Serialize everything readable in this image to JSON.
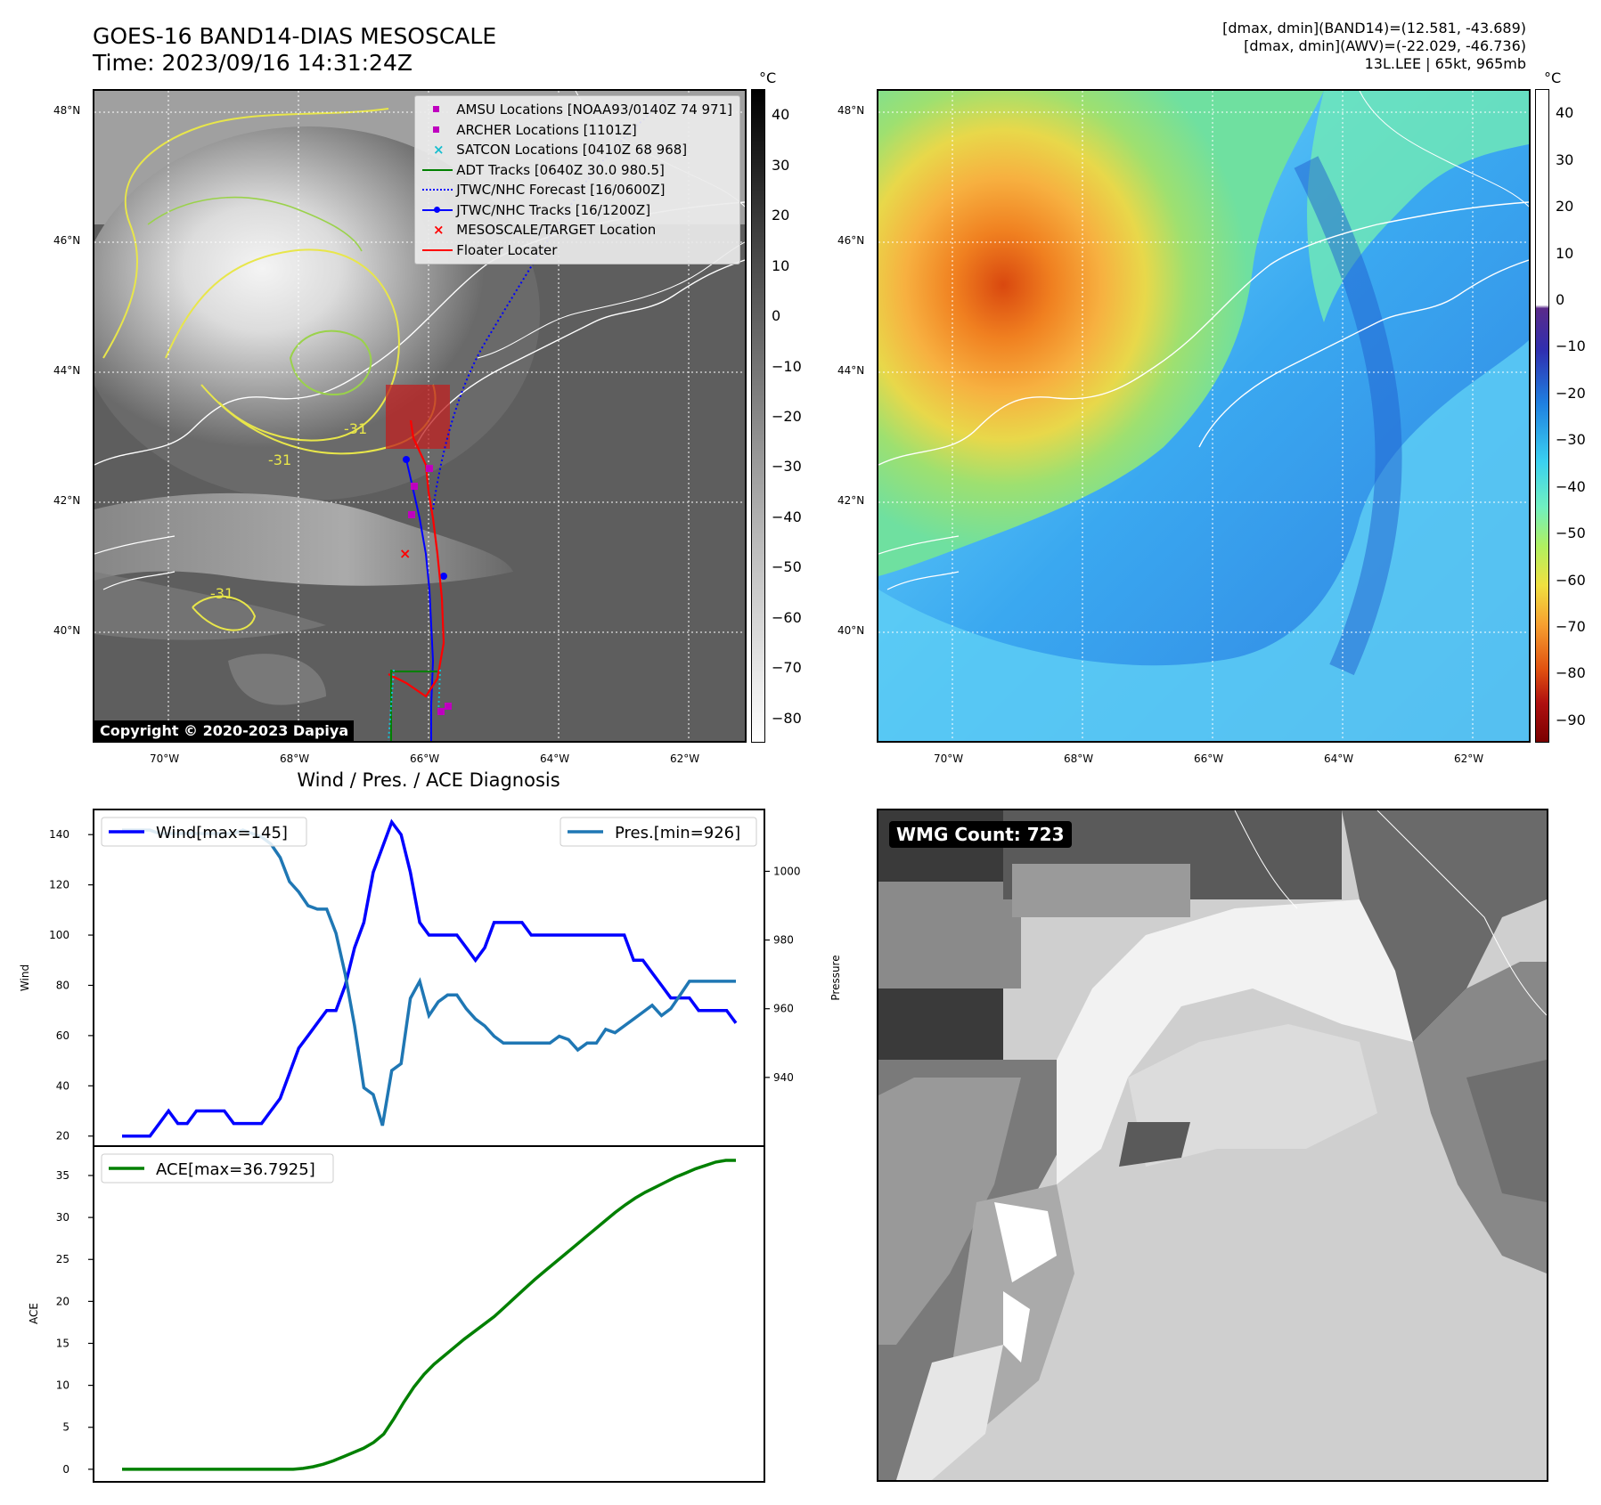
{
  "header": {
    "title_line1": "GOES-16 BAND14-DIAS MESOSCALE",
    "title_line2": "Time: 2023/09/16 14:31:24Z",
    "info_line1": "[dmax, dmin](BAND14)=(12.581, -43.689)",
    "info_line2": "[dmax, dmin](AWV)=(-22.029, -46.736)",
    "info_line3": "13L.LEE | 65kt, 965mb"
  },
  "map_left": {
    "lat_labels": [
      "48°N",
      "46°N",
      "44°N",
      "42°N",
      "40°N"
    ],
    "lon_labels": [
      "70°W",
      "68°W",
      "66°W",
      "64°W",
      "62°W"
    ],
    "contour_labels": [
      "-31",
      "-31",
      "-31"
    ],
    "copyright": "Copyright © 2020-2023 Dapiya",
    "legend": [
      {
        "label": "AMSU Locations [NOAA93/0140Z 74 971]",
        "symbol": "square",
        "color": "#bf00bf"
      },
      {
        "label": "ARCHER Locations [1101Z]",
        "symbol": "square",
        "color": "#bf00bf"
      },
      {
        "label": "SATCON Locations [0410Z 68 968]",
        "symbol": "x",
        "color": "#17becf"
      },
      {
        "label": "ADT Tracks [0640Z 30.0 980.5]",
        "symbol": "line",
        "color": "#008000"
      },
      {
        "label": "JTWC/NHC Forecast [16/0600Z]",
        "symbol": "dotted",
        "color": "#0000ff"
      },
      {
        "label": "JTWC/NHC Tracks [16/1200Z]",
        "symbol": "line-dot",
        "color": "#0000ff"
      },
      {
        "label": "MESOSCALE/TARGET Location",
        "symbol": "x",
        "color": "#ff0000"
      },
      {
        "label": "Floater Locater",
        "symbol": "line",
        "color": "#ff0000"
      }
    ],
    "colorbar": {
      "unit": "°C",
      "ticks": [
        "40",
        "30",
        "20",
        "10",
        "0",
        "−10",
        "−20",
        "−30",
        "−40",
        "−50",
        "−60",
        "−70",
        "−80"
      ]
    }
  },
  "map_right": {
    "lat_labels": [
      "48°N",
      "46°N",
      "44°N",
      "42°N",
      "40°N"
    ],
    "lon_labels": [
      "70°W",
      "68°W",
      "66°W",
      "64°W",
      "62°W"
    ],
    "colorbar": {
      "unit": "°C",
      "ticks": [
        "40",
        "30",
        "20",
        "10",
        "0",
        "−10",
        "−20",
        "−30",
        "−40",
        "−50",
        "−60",
        "−70",
        "−80",
        "−90"
      ]
    }
  },
  "wmg": {
    "label": "WMG Count: 723"
  },
  "chart_data": [
    {
      "type": "line",
      "title": "Wind / Pres. / ACE Diagnosis",
      "ylabel": "Wind",
      "y2label": "Pressure",
      "ylim": [
        16,
        150
      ],
      "y2lim": [
        920,
        1018
      ],
      "yticks": [
        20,
        40,
        60,
        80,
        100,
        120,
        140
      ],
      "y2ticks": [
        940,
        960,
        980,
        1000
      ],
      "series": [
        {
          "name": "Wind[max=145]",
          "color": "#0000ff",
          "axis": "left",
          "values": [
            20,
            20,
            20,
            20,
            25,
            30,
            25,
            25,
            30,
            30,
            30,
            30,
            25,
            25,
            25,
            25,
            30,
            35,
            45,
            55,
            60,
            65,
            70,
            70,
            80,
            95,
            105,
            125,
            135,
            145,
            140,
            125,
            105,
            100,
            100,
            100,
            100,
            95,
            90,
            95,
            105,
            105,
            105,
            105,
            100,
            100,
            100,
            100,
            100,
            100,
            100,
            100,
            100,
            100,
            100,
            90,
            90,
            85,
            80,
            75,
            75,
            75,
            70,
            70,
            70,
            70,
            65
          ]
        },
        {
          "name": "Pres.[min=926]",
          "color": "#1f77b4",
          "axis": "right",
          "values": [
            1012,
            1012,
            1012,
            1012,
            1011,
            1011,
            1011,
            1011,
            1011,
            1011,
            1011,
            1011,
            1011,
            1012,
            1011,
            1010,
            1008,
            1004,
            997,
            994,
            990,
            989,
            989,
            982,
            970,
            955,
            937,
            935,
            926,
            942,
            944,
            963,
            968,
            958,
            962,
            964,
            964,
            960,
            957,
            955,
            952,
            950,
            950,
            950,
            950,
            950,
            950,
            952,
            951,
            948,
            950,
            950,
            954,
            953,
            955,
            957,
            959,
            961,
            958,
            960,
            964,
            968,
            968,
            968,
            968,
            968,
            968
          ]
        }
      ]
    },
    {
      "type": "line",
      "ylabel": "ACE",
      "ylim": [
        -1.5,
        38.5
      ],
      "yticks": [
        0,
        5,
        10,
        15,
        20,
        25,
        30,
        35
      ],
      "series": [
        {
          "name": "ACE[max=36.7925]",
          "color": "#008000",
          "values": [
            0,
            0,
            0,
            0,
            0,
            0,
            0,
            0,
            0,
            0,
            0,
            0,
            0,
            0,
            0,
            0,
            0,
            0,
            0.1,
            0.3,
            0.6,
            1.0,
            1.5,
            2.0,
            2.5,
            3.2,
            4.2,
            6.0,
            8.0,
            9.8,
            11.3,
            12.5,
            13.5,
            14.5,
            15.5,
            16.4,
            17.3,
            18.2,
            19.3,
            20.4,
            21.5,
            22.6,
            23.6,
            24.6,
            25.6,
            26.6,
            27.6,
            28.6,
            29.6,
            30.6,
            31.5,
            32.3,
            33.0,
            33.6,
            34.2,
            34.8,
            35.3,
            35.8,
            36.2,
            36.6,
            36.8,
            36.8
          ]
        }
      ]
    }
  ]
}
